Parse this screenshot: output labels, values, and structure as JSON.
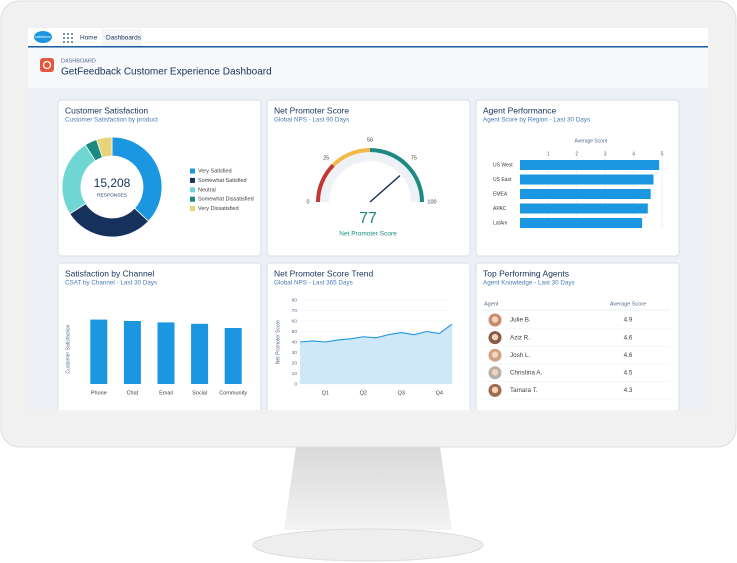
{
  "app": {
    "logo": "salesforce",
    "tabs": [
      "Home",
      "Dashboards"
    ]
  },
  "header": {
    "kicker": "DASHBOARD",
    "title": "GetFeedback Customer Experience Dashboard"
  },
  "chart_data": [
    {
      "type": "donut",
      "title": "Customer Satisfaction",
      "subtitle": "Customer Satisfaction by product",
      "center_value": "15,208",
      "center_label": "RESPONSES",
      "categories": [
        "Very Satisfied",
        "Somewhat Satisfied",
        "Neutral",
        "Somewhat Dissatisfied",
        "Very Dissatisfied"
      ],
      "values": [
        37,
        29,
        25,
        4,
        5
      ],
      "colors": [
        "#1b96e0",
        "#16325c",
        "#6fd6d3",
        "#1a8a82",
        "#e6d37a"
      ]
    },
    {
      "type": "gauge",
      "title": "Net Promoter Score",
      "subtitle": "Global NPS - Last 90 Days",
      "value": 77,
      "label": "Net Promoter Score",
      "ylim": [
        0,
        100
      ],
      "yticks": [
        0,
        25,
        50,
        75,
        100
      ],
      "bands": [
        {
          "from": 0,
          "to": 25,
          "color": "#c23934"
        },
        {
          "from": 25,
          "to": 50,
          "color": "#f4b849"
        },
        {
          "from": 50,
          "to": 100,
          "color": "#1a8a82"
        }
      ],
      "color": "#1a8a82"
    },
    {
      "type": "hbar",
      "title": "Agent Performance",
      "subtitle": "Agent Score by Region - Last 30 Days",
      "x_label": "Average Score",
      "categories": [
        "US West",
        "US East",
        "EMEA",
        "APAC",
        "LatAm"
      ],
      "values": [
        4.9,
        4.7,
        4.6,
        4.5,
        4.3
      ],
      "xlim": [
        0,
        5
      ],
      "xticks": [
        1,
        2,
        3,
        4,
        5
      ],
      "color": "#1b96e0",
      "grid": true
    },
    {
      "type": "bar",
      "title": "Satisfaction by Channel",
      "subtitle": "CSAT by Channel - Last 30 Days",
      "y_label": "Customer Satisfaction",
      "categories": [
        "Phone",
        "Chat",
        "Email",
        "Social",
        "Community"
      ],
      "values": [
        4.6,
        4.5,
        4.4,
        4.3,
        4.0
      ],
      "ylim": [
        0,
        5
      ],
      "color": "#1b96e0"
    },
    {
      "type": "area",
      "title": "Net Promoter Score Trend",
      "subtitle": "Global NPS - Last 365 Days",
      "y_label": "Net Promoter Score",
      "categories": [
        null,
        null,
        "Q1",
        null,
        null,
        "Q2",
        null,
        null,
        "Q3",
        null,
        null,
        "Q4",
        null
      ],
      "values": [
        40,
        41,
        40,
        42,
        43,
        45,
        44,
        47,
        49,
        47,
        50,
        48,
        57
      ],
      "ylim": [
        0,
        80
      ],
      "yticks": [
        0,
        10,
        20,
        30,
        40,
        50,
        60,
        70,
        80
      ],
      "color": "#1b96e0",
      "fill": "#cfe8f8",
      "grid": true
    }
  ],
  "table": {
    "title": "Top Performing Agents",
    "subtitle": "Agent Knowledge - Last 30 Days",
    "columns": [
      "Agent",
      "Average Score"
    ],
    "rows": [
      [
        "Julie B.",
        4.9
      ],
      [
        "Aziz R.",
        4.6
      ],
      [
        "Josh L.",
        4.6
      ],
      [
        "Christina A.",
        4.5
      ],
      [
        "Tamara T.",
        4.3
      ]
    ]
  }
}
